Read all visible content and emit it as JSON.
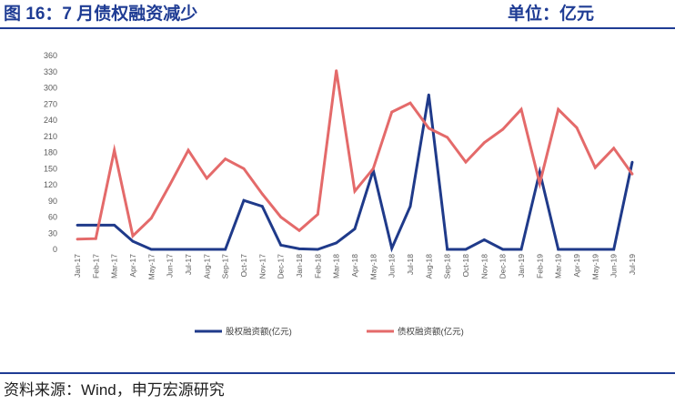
{
  "chart_data": {
    "type": "line",
    "title": "图 16：7 月债权融资减少",
    "unit_label": "单位：亿元",
    "xlabel": "",
    "ylabel": "",
    "categories": [
      "Jan-17",
      "Feb-17",
      "Mar-17",
      "Apr-17",
      "May-17",
      "Jun-17",
      "Jul-17",
      "Aug-17",
      "Sep-17",
      "Oct-17",
      "Nov-17",
      "Dec-17",
      "Jan-18",
      "Feb-18",
      "Mar-18",
      "Apr-18",
      "May-18",
      "Jun-18",
      "Jul-18",
      "Aug-18",
      "Sep-18",
      "Oct-18",
      "Nov-18",
      "Dec-18",
      "Jan-19",
      "Feb-19",
      "Mar-19",
      "Apr-19",
      "May-19",
      "Jun-19",
      "Jul-19"
    ],
    "ylim": [
      0,
      360
    ],
    "yticks": [
      0,
      30,
      60,
      90,
      120,
      150,
      180,
      210,
      240,
      270,
      300,
      330,
      360
    ],
    "grid": false,
    "legend": "bottom-center",
    "series": [
      {
        "name": "股权融资额(亿元)",
        "color": "#1f3a8a",
        "values": [
          45,
          45,
          45,
          15,
          0,
          0,
          0,
          0,
          0,
          91,
          80,
          8,
          1,
          0,
          12,
          38,
          147,
          2,
          80,
          287,
          0,
          0,
          18,
          0,
          0,
          144,
          0,
          0,
          0,
          0,
          162
        ]
      },
      {
        "name": "债权融资额(亿元)",
        "color": "#e46a6a",
        "values": [
          19,
          20,
          184,
          25,
          58,
          120,
          184,
          132,
          168,
          150,
          103,
          60,
          35,
          65,
          332,
          108,
          150,
          255,
          272,
          225,
          208,
          162,
          198,
          223,
          260,
          122,
          260,
          226,
          152,
          188,
          140
        ]
      }
    ]
  },
  "footer": {
    "source": "资料来源：Wind，申万宏源研究"
  }
}
